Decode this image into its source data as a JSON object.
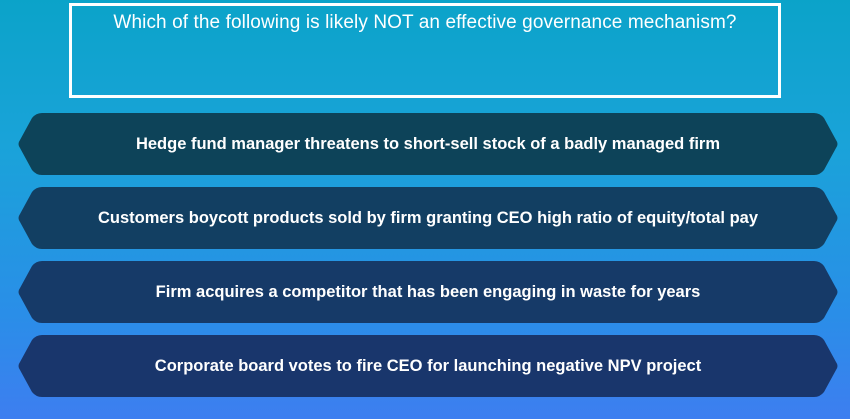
{
  "question": {
    "text": "Which of the following is likely NOT an effective governance mechanism?"
  },
  "answers": [
    {
      "label": "Hedge fund manager threatens to short-sell stock of a badly managed firm",
      "color": "#0d4359"
    },
    {
      "label": "Customers boycott products sold by firm granting CEO high ratio of equity/total pay",
      "color": "#123f62"
    },
    {
      "label": "Firm acquires a competitor that has been engaging in waste for years",
      "color": "#163a68"
    },
    {
      "label": "Corporate board votes to fire CEO for launching negative NPV project",
      "color": "#19366c"
    }
  ]
}
